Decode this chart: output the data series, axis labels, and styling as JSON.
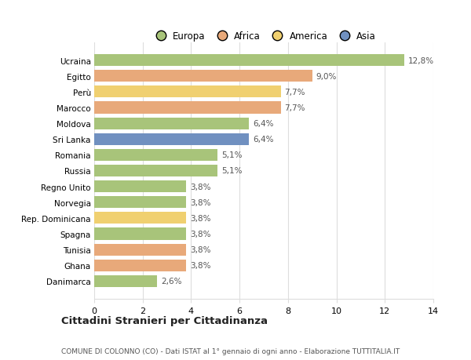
{
  "categories": [
    "Ucraina",
    "Egitto",
    "Perù",
    "Marocco",
    "Moldova",
    "Sri Lanka",
    "Romania",
    "Russia",
    "Regno Unito",
    "Norvegia",
    "Rep. Dominicana",
    "Spagna",
    "Tunisia",
    "Ghana",
    "Danimarca"
  ],
  "values": [
    12.8,
    9.0,
    7.7,
    7.7,
    6.4,
    6.4,
    5.1,
    5.1,
    3.8,
    3.8,
    3.8,
    3.8,
    3.8,
    3.8,
    2.6
  ],
  "labels": [
    "12,8%",
    "9,0%",
    "7,7%",
    "7,7%",
    "6,4%",
    "6,4%",
    "5,1%",
    "5,1%",
    "3,8%",
    "3,8%",
    "3,8%",
    "3,8%",
    "3,8%",
    "3,8%",
    "2,6%"
  ],
  "colors": [
    "#a8c47a",
    "#e8a97a",
    "#f0d070",
    "#e8a97a",
    "#a8c47a",
    "#7090c0",
    "#a8c47a",
    "#a8c47a",
    "#a8c47a",
    "#a8c47a",
    "#f0d070",
    "#a8c47a",
    "#e8a97a",
    "#e8a97a",
    "#a8c47a"
  ],
  "legend_labels": [
    "Europa",
    "Africa",
    "America",
    "Asia"
  ],
  "legend_colors": [
    "#a8c47a",
    "#e8a97a",
    "#f0d070",
    "#7090c0"
  ],
  "title": "Cittadini Stranieri per Cittadinanza",
  "subtitle": "COMUNE DI COLONNO (CO) - Dati ISTAT al 1° gennaio di ogni anno - Elaborazione TUTTITALIA.IT",
  "xlim": [
    0,
    14
  ],
  "xticks": [
    0,
    2,
    4,
    6,
    8,
    10,
    12,
    14
  ],
  "background_color": "#ffffff",
  "grid_color": "#dddddd"
}
